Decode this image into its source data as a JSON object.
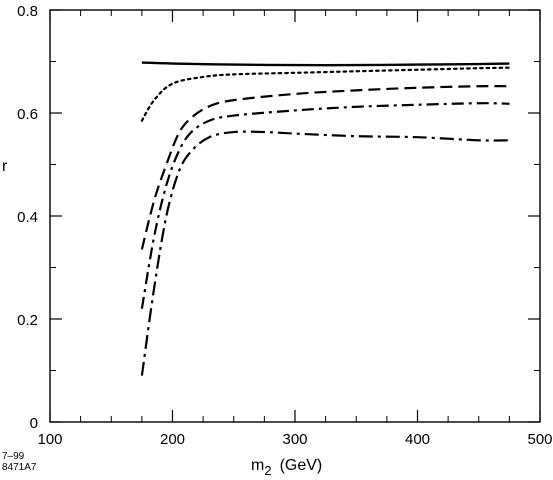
{
  "chart_data": {
    "type": "line",
    "title": "",
    "xlabel": {
      "main": "m",
      "subscript": "2",
      "unit": "(GeV)"
    },
    "ylabel": "r",
    "xlim": [
      100,
      500
    ],
    "ylim": [
      0,
      0.8
    ],
    "xticks": [
      100,
      200,
      300,
      400,
      500
    ],
    "xtick_labels": [
      "100",
      "200",
      "300",
      "400",
      "500"
    ],
    "yticks": [
      0,
      0.2,
      0.4,
      0.6,
      0.8
    ],
    "ytick_labels": [
      "0",
      "0.2",
      "0.4",
      "0.6",
      "0.8"
    ],
    "grid": false,
    "legend": false,
    "series": [
      {
        "style": "solid",
        "x": [
          175,
          200,
          250,
          300,
          350,
          400,
          450,
          475
        ],
        "y": [
          0.698,
          0.696,
          0.694,
          0.693,
          0.693,
          0.694,
          0.695,
          0.696
        ]
      },
      {
        "style": "dotted",
        "x": [
          175,
          185,
          200,
          225,
          250,
          300,
          350,
          400,
          450,
          475
        ],
        "y": [
          0.585,
          0.625,
          0.657,
          0.67,
          0.675,
          0.678,
          0.681,
          0.684,
          0.687,
          0.688
        ]
      },
      {
        "style": "dashed",
        "x": [
          175,
          185,
          195,
          205,
          215,
          230,
          250,
          300,
          350,
          400,
          450,
          475
        ],
        "y": [
          0.335,
          0.43,
          0.5,
          0.56,
          0.59,
          0.613,
          0.625,
          0.637,
          0.644,
          0.649,
          0.652,
          0.652
        ]
      },
      {
        "style": "dash-dot",
        "x": [
          175,
          185,
          195,
          205,
          215,
          230,
          250,
          300,
          350,
          400,
          450,
          475
        ],
        "y": [
          0.22,
          0.36,
          0.46,
          0.525,
          0.562,
          0.585,
          0.595,
          0.605,
          0.612,
          0.616,
          0.619,
          0.618
        ]
      },
      {
        "style": "dash-dot-dot",
        "x": [
          175,
          185,
          195,
          205,
          215,
          230,
          250,
          275,
          300,
          350,
          400,
          450,
          475
        ],
        "y": [
          0.09,
          0.26,
          0.4,
          0.485,
          0.525,
          0.553,
          0.563,
          0.563,
          0.56,
          0.555,
          0.553,
          0.547,
          0.547
        ]
      }
    ]
  },
  "footnote": {
    "line1": "7–99",
    "line2": "8471A7"
  }
}
